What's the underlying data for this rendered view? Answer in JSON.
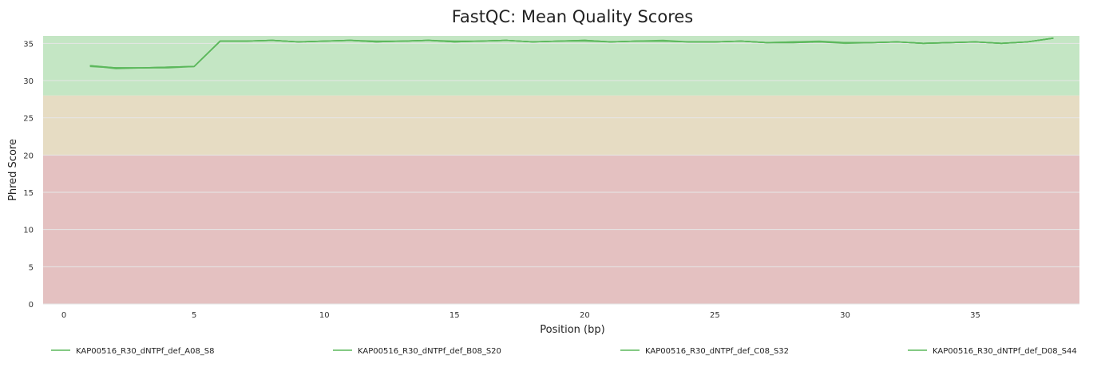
{
  "chart_data": {
    "type": "line",
    "title": "FastQC: Mean Quality Scores",
    "xlabel": "Position (bp)",
    "ylabel": "Phred Score",
    "xlim": [
      -0.8,
      39
    ],
    "ylim": [
      0,
      36
    ],
    "xticks": [
      0,
      5,
      10,
      15,
      20,
      25,
      30,
      35
    ],
    "yticks": [
      0,
      5,
      10,
      15,
      20,
      25,
      30,
      35
    ],
    "grid": "horizontal",
    "legend_position": "bottom",
    "bands": [
      {
        "from": 0,
        "to": 20,
        "color": "#e4c1c1"
      },
      {
        "from": 20,
        "to": 28,
        "color": "#e6dcc3"
      },
      {
        "from": 28,
        "to": 36,
        "color": "#c4e6c4"
      }
    ],
    "x": [
      1,
      2,
      3,
      4,
      5,
      6,
      7,
      8,
      9,
      10,
      11,
      12,
      13,
      14,
      15,
      16,
      17,
      18,
      19,
      20,
      21,
      22,
      23,
      24,
      25,
      26,
      27,
      28,
      29,
      30,
      31,
      32,
      33,
      34,
      35,
      36,
      37,
      38
    ],
    "series": [
      {
        "name": "KAP00516_R30_dNTPf_def_A08_S8",
        "color": "#5cb85c",
        "values": [
          32.0,
          31.7,
          31.7,
          31.8,
          31.9,
          35.3,
          35.3,
          35.4,
          35.2,
          35.3,
          35.4,
          35.2,
          35.3,
          35.4,
          35.2,
          35.3,
          35.4,
          35.2,
          35.3,
          35.4,
          35.2,
          35.3,
          35.3,
          35.2,
          35.2,
          35.3,
          35.1,
          35.1,
          35.2,
          35.0,
          35.1,
          35.2,
          35.0,
          35.1,
          35.2,
          35.0,
          35.2,
          35.7
        ]
      },
      {
        "name": "KAP00516_R30_dNTPf_def_B08_S20",
        "color": "#5cb85c",
        "values": [
          31.9,
          31.7,
          31.7,
          31.7,
          31.9,
          35.3,
          35.3,
          35.4,
          35.2,
          35.3,
          35.4,
          35.3,
          35.3,
          35.4,
          35.3,
          35.3,
          35.4,
          35.2,
          35.3,
          35.3,
          35.2,
          35.3,
          35.3,
          35.2,
          35.2,
          35.3,
          35.1,
          35.2,
          35.2,
          35.1,
          35.1,
          35.2,
          35.0,
          35.1,
          35.2,
          35.0,
          35.2,
          35.7
        ]
      },
      {
        "name": "KAP00516_R30_dNTPf_def_C08_S32",
        "color": "#5cb85c",
        "values": [
          32.0,
          31.6,
          31.7,
          31.8,
          31.9,
          35.3,
          35.3,
          35.4,
          35.2,
          35.3,
          35.4,
          35.2,
          35.3,
          35.4,
          35.2,
          35.3,
          35.4,
          35.2,
          35.3,
          35.4,
          35.2,
          35.3,
          35.4,
          35.2,
          35.2,
          35.3,
          35.1,
          35.2,
          35.3,
          35.1,
          35.1,
          35.2,
          35.0,
          35.1,
          35.2,
          35.0,
          35.2,
          35.7
        ]
      },
      {
        "name": "KAP00516_R30_dNTPf_def_D08_S44",
        "color": "#5cb85c",
        "values": [
          32.0,
          31.7,
          31.7,
          31.8,
          31.9,
          35.3,
          35.3,
          35.4,
          35.2,
          35.3,
          35.4,
          35.2,
          35.3,
          35.4,
          35.2,
          35.3,
          35.4,
          35.2,
          35.3,
          35.4,
          35.2,
          35.3,
          35.3,
          35.2,
          35.2,
          35.3,
          35.1,
          35.1,
          35.2,
          35.1,
          35.1,
          35.2,
          35.0,
          35.1,
          35.2,
          35.0,
          35.2,
          35.7
        ]
      }
    ]
  }
}
